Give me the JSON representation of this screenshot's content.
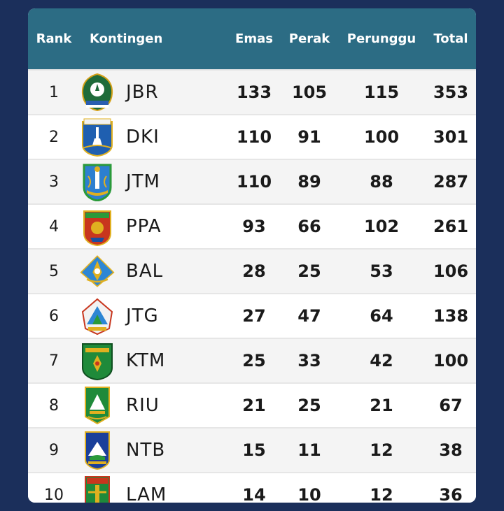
{
  "headers": {
    "rank": "Rank",
    "kontingen": "Kontingen",
    "emas": "Emas",
    "perak": "Perak",
    "perunggu": "Perunggu",
    "total": "Total"
  },
  "rows": [
    {
      "rank": "1",
      "code": "JBR",
      "emas": "133",
      "perak": "105",
      "perunggu": "115",
      "total": "353",
      "emblem": "jawa-barat-emblem"
    },
    {
      "rank": "2",
      "code": "DKI",
      "emas": "110",
      "perak": "91",
      "perunggu": "100",
      "total": "301",
      "emblem": "dki-jakarta-emblem"
    },
    {
      "rank": "3",
      "code": "JTM",
      "emas": "110",
      "perak": "89",
      "perunggu": "88",
      "total": "287",
      "emblem": "jawa-timur-emblem"
    },
    {
      "rank": "4",
      "code": "PPA",
      "emas": "93",
      "perak": "66",
      "perunggu": "102",
      "total": "261",
      "emblem": "papua-emblem"
    },
    {
      "rank": "5",
      "code": "BAL",
      "emas": "28",
      "perak": "25",
      "perunggu": "53",
      "total": "106",
      "emblem": "bali-emblem"
    },
    {
      "rank": "6",
      "code": "JTG",
      "emas": "27",
      "perak": "47",
      "perunggu": "64",
      "total": "138",
      "emblem": "jawa-tengah-emblem"
    },
    {
      "rank": "7",
      "code": "KTM",
      "emas": "25",
      "perak": "33",
      "perunggu": "42",
      "total": "100",
      "emblem": "kalimantan-timur-emblem"
    },
    {
      "rank": "8",
      "code": "RIU",
      "emas": "21",
      "perak": "25",
      "perunggu": "21",
      "total": "67",
      "emblem": "riau-emblem"
    },
    {
      "rank": "9",
      "code": "NTB",
      "emas": "15",
      "perak": "11",
      "perunggu": "12",
      "total": "38",
      "emblem": "ntb-emblem"
    },
    {
      "rank": "10",
      "code": "LAM",
      "emas": "14",
      "perak": "10",
      "perunggu": "12",
      "total": "36",
      "emblem": "lampung-emblem"
    }
  ],
  "colors": {
    "background": "#1b2f5b",
    "header": "#2c6c84",
    "row_odd": "#f4f4f4",
    "row_even": "#ffffff"
  }
}
